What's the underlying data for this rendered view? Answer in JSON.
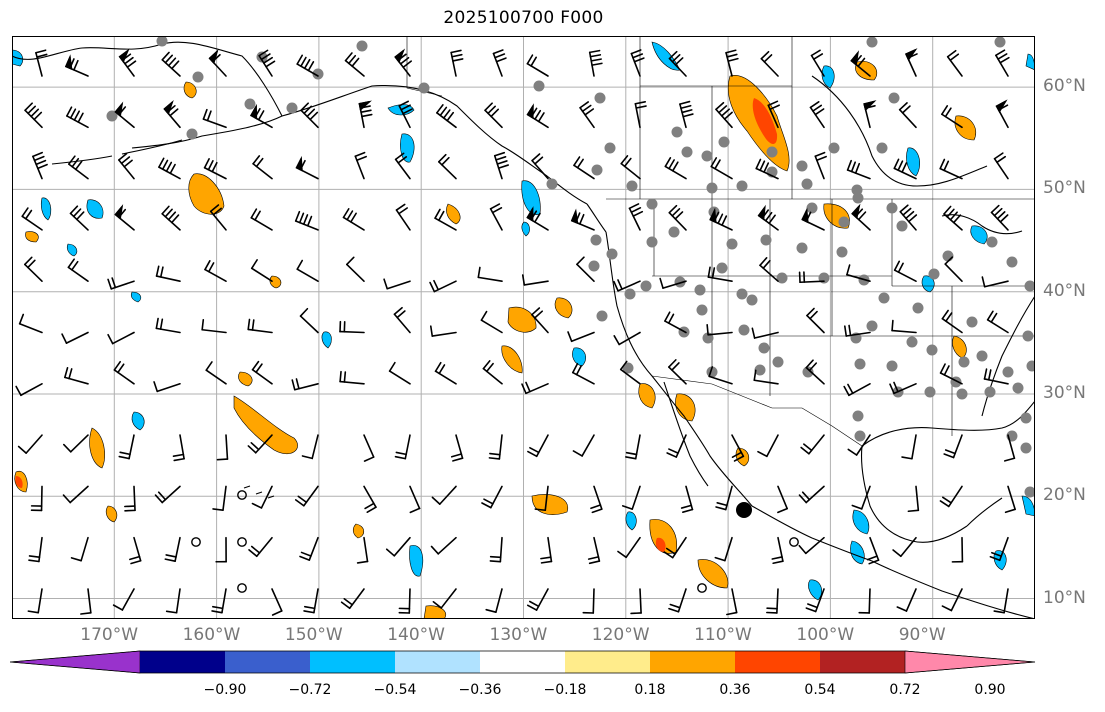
{
  "title": "2025100700 F000",
  "map": {
    "lon_range": [
      -180,
      -80
    ],
    "lat_range": [
      8,
      65
    ],
    "gridlines": true,
    "lat_labels": [
      "10°N",
      "20°N",
      "30°N",
      "40°N",
      "50°N",
      "60°N"
    ],
    "lat_values": [
      10,
      20,
      30,
      40,
      50,
      60
    ],
    "lon_labels": [
      "170°W",
      "160°W",
      "150°W",
      "140°W",
      "130°W",
      "120°W",
      "110°W",
      "100°W",
      "90°W"
    ],
    "lon_values": [
      -170,
      -160,
      -150,
      -140,
      -130,
      -120,
      -110,
      -100,
      -90
    ],
    "station_markers": "gray filled circles over land"
  },
  "colorbar": {
    "ticks": [
      "−0.90",
      "−0.72",
      "−0.54",
      "−0.36",
      "−0.18",
      "0.18",
      "0.36",
      "0.54",
      "0.72",
      "0.90"
    ],
    "colors": [
      "#9932cc",
      "#00008b",
      "#3a5fcd",
      "#00bfff",
      "#b0e2ff",
      "#ffffff",
      "#ffec8b",
      "#ffa500",
      "#ff4500",
      "#b22222",
      "#ff88aa"
    ],
    "extend": "both"
  }
}
